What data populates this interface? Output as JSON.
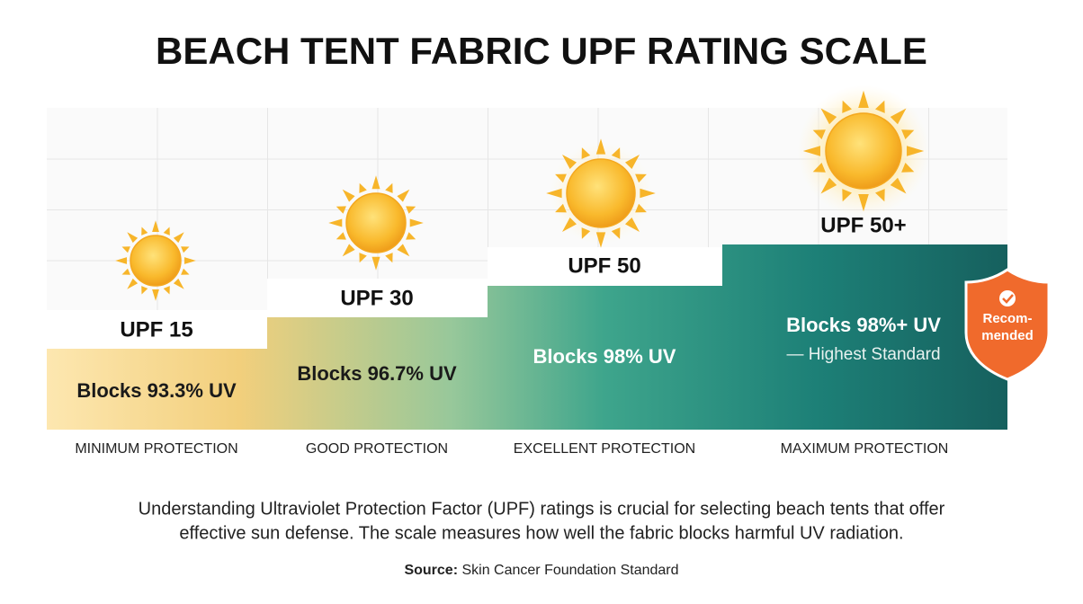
{
  "title": "BEACH TENT FABRIC UPF RATING SCALE",
  "tiers": [
    {
      "rating": "UPF 15",
      "blocks": "Blocks 93.3% UV",
      "level": "MINIMUM PROTECTION"
    },
    {
      "rating": "UPF 30",
      "blocks": "Blocks 96.7% UV",
      "level": "GOOD PROTECTION"
    },
    {
      "rating": "UPF 50",
      "blocks": "Blocks 98% UV",
      "level": "EXCELLENT PROTECTION"
    },
    {
      "rating": "UPF 50+",
      "blocks": "Blocks 98%+ UV",
      "note": "— Highest Standard",
      "level": "MAXIMUM PROTECTION"
    }
  ],
  "badge": [
    "Recom-",
    "mended"
  ],
  "description": [
    "Understanding Ultraviolet Protection Factor (UPF) ratings is crucial for selecting beach tents that offer",
    "effective sun defense. The scale measures how well the fabric blocks harmful UV radiation."
  ],
  "source": {
    "label": "Source:",
    "text": "Skin Cancer Foundation Standard"
  }
}
